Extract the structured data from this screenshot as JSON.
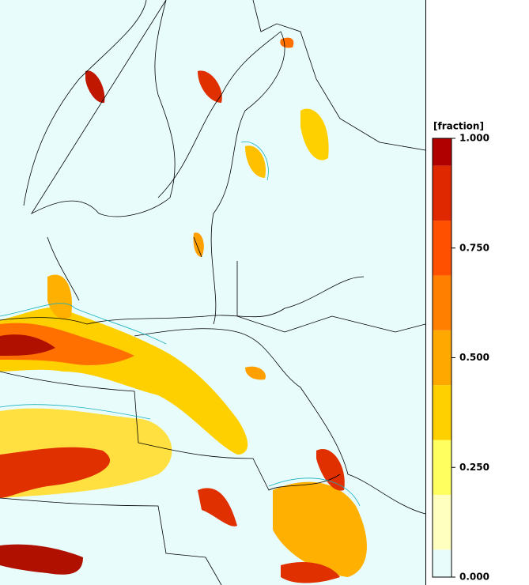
{
  "legend": {
    "title": "[fraction]",
    "lim": [
      0,
      1
    ],
    "ticks": [
      {
        "value": 1,
        "label": "1.000"
      },
      {
        "value": 0.75,
        "label": "0.750"
      },
      {
        "value": 0.5,
        "label": "0.500"
      },
      {
        "value": 0.25,
        "label": "0.250"
      },
      {
        "value": 0,
        "label": "0.000"
      }
    ],
    "bands": [
      {
        "from": 0,
        "to": 0.0625,
        "color": "#e8fcfc"
      },
      {
        "from": 0.0625,
        "to": 0.1875,
        "color": "#ffffc0"
      },
      {
        "from": 0.1875,
        "to": 0.3125,
        "color": "#ffff60"
      },
      {
        "from": 0.3125,
        "to": 0.4375,
        "color": "#ffd000"
      },
      {
        "from": 0.4375,
        "to": 0.5625,
        "color": "#ffa800"
      },
      {
        "from": 0.5625,
        "to": 0.6875,
        "color": "#ff8000"
      },
      {
        "from": 0.6875,
        "to": 0.8125,
        "color": "#ff5000"
      },
      {
        "from": 0.8125,
        "to": 0.9375,
        "color": "#e02800"
      },
      {
        "from": 0.9375,
        "to": 1,
        "color": "#b00000"
      }
    ]
  }
}
